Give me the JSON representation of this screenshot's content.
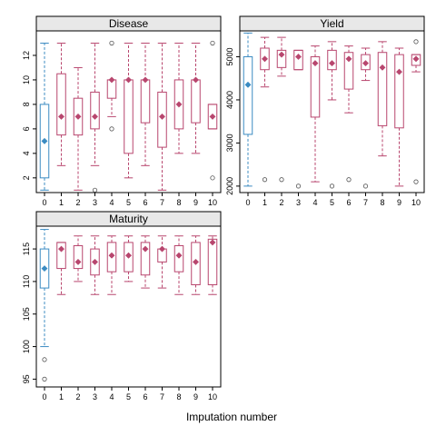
{
  "figure": {
    "xlabel": "Imputation number"
  },
  "colors": {
    "observed": "#3b8bc2",
    "imputed": "#b8466e",
    "strip": "#e8e8e8",
    "outlier": "#555555"
  },
  "chart_data": [
    {
      "type": "box",
      "title": "Disease",
      "categories": [
        "0",
        "1",
        "2",
        "3",
        "4",
        "5",
        "6",
        "7",
        "8",
        "9",
        "10"
      ],
      "ylim": [
        0.8,
        14.0
      ],
      "yticks": [
        2,
        4,
        6,
        8,
        10,
        12
      ],
      "boxes": [
        {
          "q1": 2.0,
          "median": 5.0,
          "q3": 8.0,
          "lo": 1.0,
          "hi": 13.0,
          "outliers": []
        },
        {
          "q1": 5.5,
          "median": 7.0,
          "q3": 10.5,
          "lo": 3.0,
          "hi": 13.0,
          "outliers": []
        },
        {
          "q1": 5.5,
          "median": 7.0,
          "q3": 8.5,
          "lo": 1.0,
          "hi": 11.0,
          "outliers": []
        },
        {
          "q1": 6.0,
          "median": 7.0,
          "q3": 9.0,
          "lo": 3.0,
          "hi": 13.0,
          "outliers": [
            1.0
          ]
        },
        {
          "q1": 8.5,
          "median": 10.0,
          "q3": 10.0,
          "lo": 7.0,
          "hi": 10.0,
          "outliers": [
            6.0,
            13.0
          ]
        },
        {
          "q1": 4.0,
          "median": 10.0,
          "q3": 10.0,
          "lo": 2.0,
          "hi": 13.0,
          "outliers": []
        },
        {
          "q1": 6.5,
          "median": 10.0,
          "q3": 10.0,
          "lo": 3.0,
          "hi": 13.0,
          "outliers": []
        },
        {
          "q1": 4.5,
          "median": 7.0,
          "q3": 9.0,
          "lo": 1.0,
          "hi": 13.0,
          "outliers": []
        },
        {
          "q1": 6.0,
          "median": 8.0,
          "q3": 10.0,
          "lo": 4.0,
          "hi": 13.0,
          "outliers": []
        },
        {
          "q1": 6.5,
          "median": 10.0,
          "q3": 10.0,
          "lo": 4.0,
          "hi": 13.0,
          "outliers": []
        },
        {
          "q1": 6.0,
          "median": 7.0,
          "q3": 8.0,
          "lo": 6.0,
          "hi": 8.0,
          "outliers": [
            2.0,
            13.0
          ]
        }
      ]
    },
    {
      "type": "box",
      "title": "Yield",
      "categories": [
        "0",
        "1",
        "2",
        "3",
        "4",
        "5",
        "6",
        "7",
        "8",
        "9",
        "10"
      ],
      "ylim": [
        1850,
        5600
      ],
      "yticks": [
        2000,
        3000,
        4000,
        5000
      ],
      "boxes": [
        {
          "q1": 3200,
          "median": 4350,
          "q3": 5000,
          "lo": 2000,
          "hi": 5550,
          "outliers": []
        },
        {
          "q1": 4700,
          "median": 4950,
          "q3": 5200,
          "lo": 4300,
          "hi": 5450,
          "outliers": [
            2150
          ]
        },
        {
          "q1": 4750,
          "median": 5050,
          "q3": 5150,
          "lo": 4550,
          "hi": 5450,
          "outliers": [
            2150
          ]
        },
        {
          "q1": 4700,
          "median": 5000,
          "q3": 5150,
          "lo": 4700,
          "hi": 5150,
          "outliers": [
            2000
          ]
        },
        {
          "q1": 3600,
          "median": 4850,
          "q3": 5000,
          "lo": 2100,
          "hi": 5250,
          "outliers": []
        },
        {
          "q1": 4700,
          "median": 4850,
          "q3": 5150,
          "lo": 4000,
          "hi": 5350,
          "outliers": [
            2000
          ]
        },
        {
          "q1": 4250,
          "median": 4950,
          "q3": 5100,
          "lo": 3700,
          "hi": 5250,
          "outliers": [
            2150
          ]
        },
        {
          "q1": 4700,
          "median": 4850,
          "q3": 5050,
          "lo": 4450,
          "hi": 5200,
          "outliers": [
            2000
          ]
        },
        {
          "q1": 3400,
          "median": 4750,
          "q3": 5100,
          "lo": 2700,
          "hi": 5350,
          "outliers": []
        },
        {
          "q1": 3350,
          "median": 4650,
          "q3": 5050,
          "lo": 2000,
          "hi": 5200,
          "outliers": []
        },
        {
          "q1": 4800,
          "median": 4950,
          "q3": 5050,
          "lo": 4650,
          "hi": 5050,
          "outliers": [
            2100,
            5350
          ]
        }
      ]
    },
    {
      "type": "box",
      "title": "Maturity",
      "categories": [
        "0",
        "1",
        "2",
        "3",
        "4",
        "5",
        "6",
        "7",
        "8",
        "9",
        "10"
      ],
      "ylim": [
        93.8,
        118.5
      ],
      "yticks": [
        95,
        100,
        105,
        110,
        115
      ],
      "boxes": [
        {
          "q1": 109,
          "median": 112,
          "q3": 115,
          "lo": 100,
          "hi": 118,
          "outliers": [
            98,
            95
          ]
        },
        {
          "q1": 112,
          "median": 115,
          "q3": 116,
          "lo": 108,
          "hi": 116,
          "outliers": []
        },
        {
          "q1": 112,
          "median": 113,
          "q3": 115.5,
          "lo": 110,
          "hi": 117,
          "outliers": []
        },
        {
          "q1": 111,
          "median": 113,
          "q3": 115,
          "lo": 108,
          "hi": 117,
          "outliers": []
        },
        {
          "q1": 111.5,
          "median": 114,
          "q3": 116,
          "lo": 108,
          "hi": 117,
          "outliers": []
        },
        {
          "q1": 111.5,
          "median": 114,
          "q3": 116,
          "lo": 110,
          "hi": 117,
          "outliers": []
        },
        {
          "q1": 111,
          "median": 115,
          "q3": 116,
          "lo": 109,
          "hi": 117,
          "outliers": []
        },
        {
          "q1": 113,
          "median": 115,
          "q3": 115,
          "lo": 109,
          "hi": 117,
          "outliers": []
        },
        {
          "q1": 111.5,
          "median": 114,
          "q3": 115.5,
          "lo": 108,
          "hi": 117,
          "outliers": []
        },
        {
          "q1": 109.5,
          "median": 113,
          "q3": 116,
          "lo": 108,
          "hi": 117,
          "outliers": []
        },
        {
          "q1": 109.5,
          "median": 116,
          "q3": 116.5,
          "lo": 108,
          "hi": 117,
          "outliers": []
        }
      ]
    }
  ]
}
